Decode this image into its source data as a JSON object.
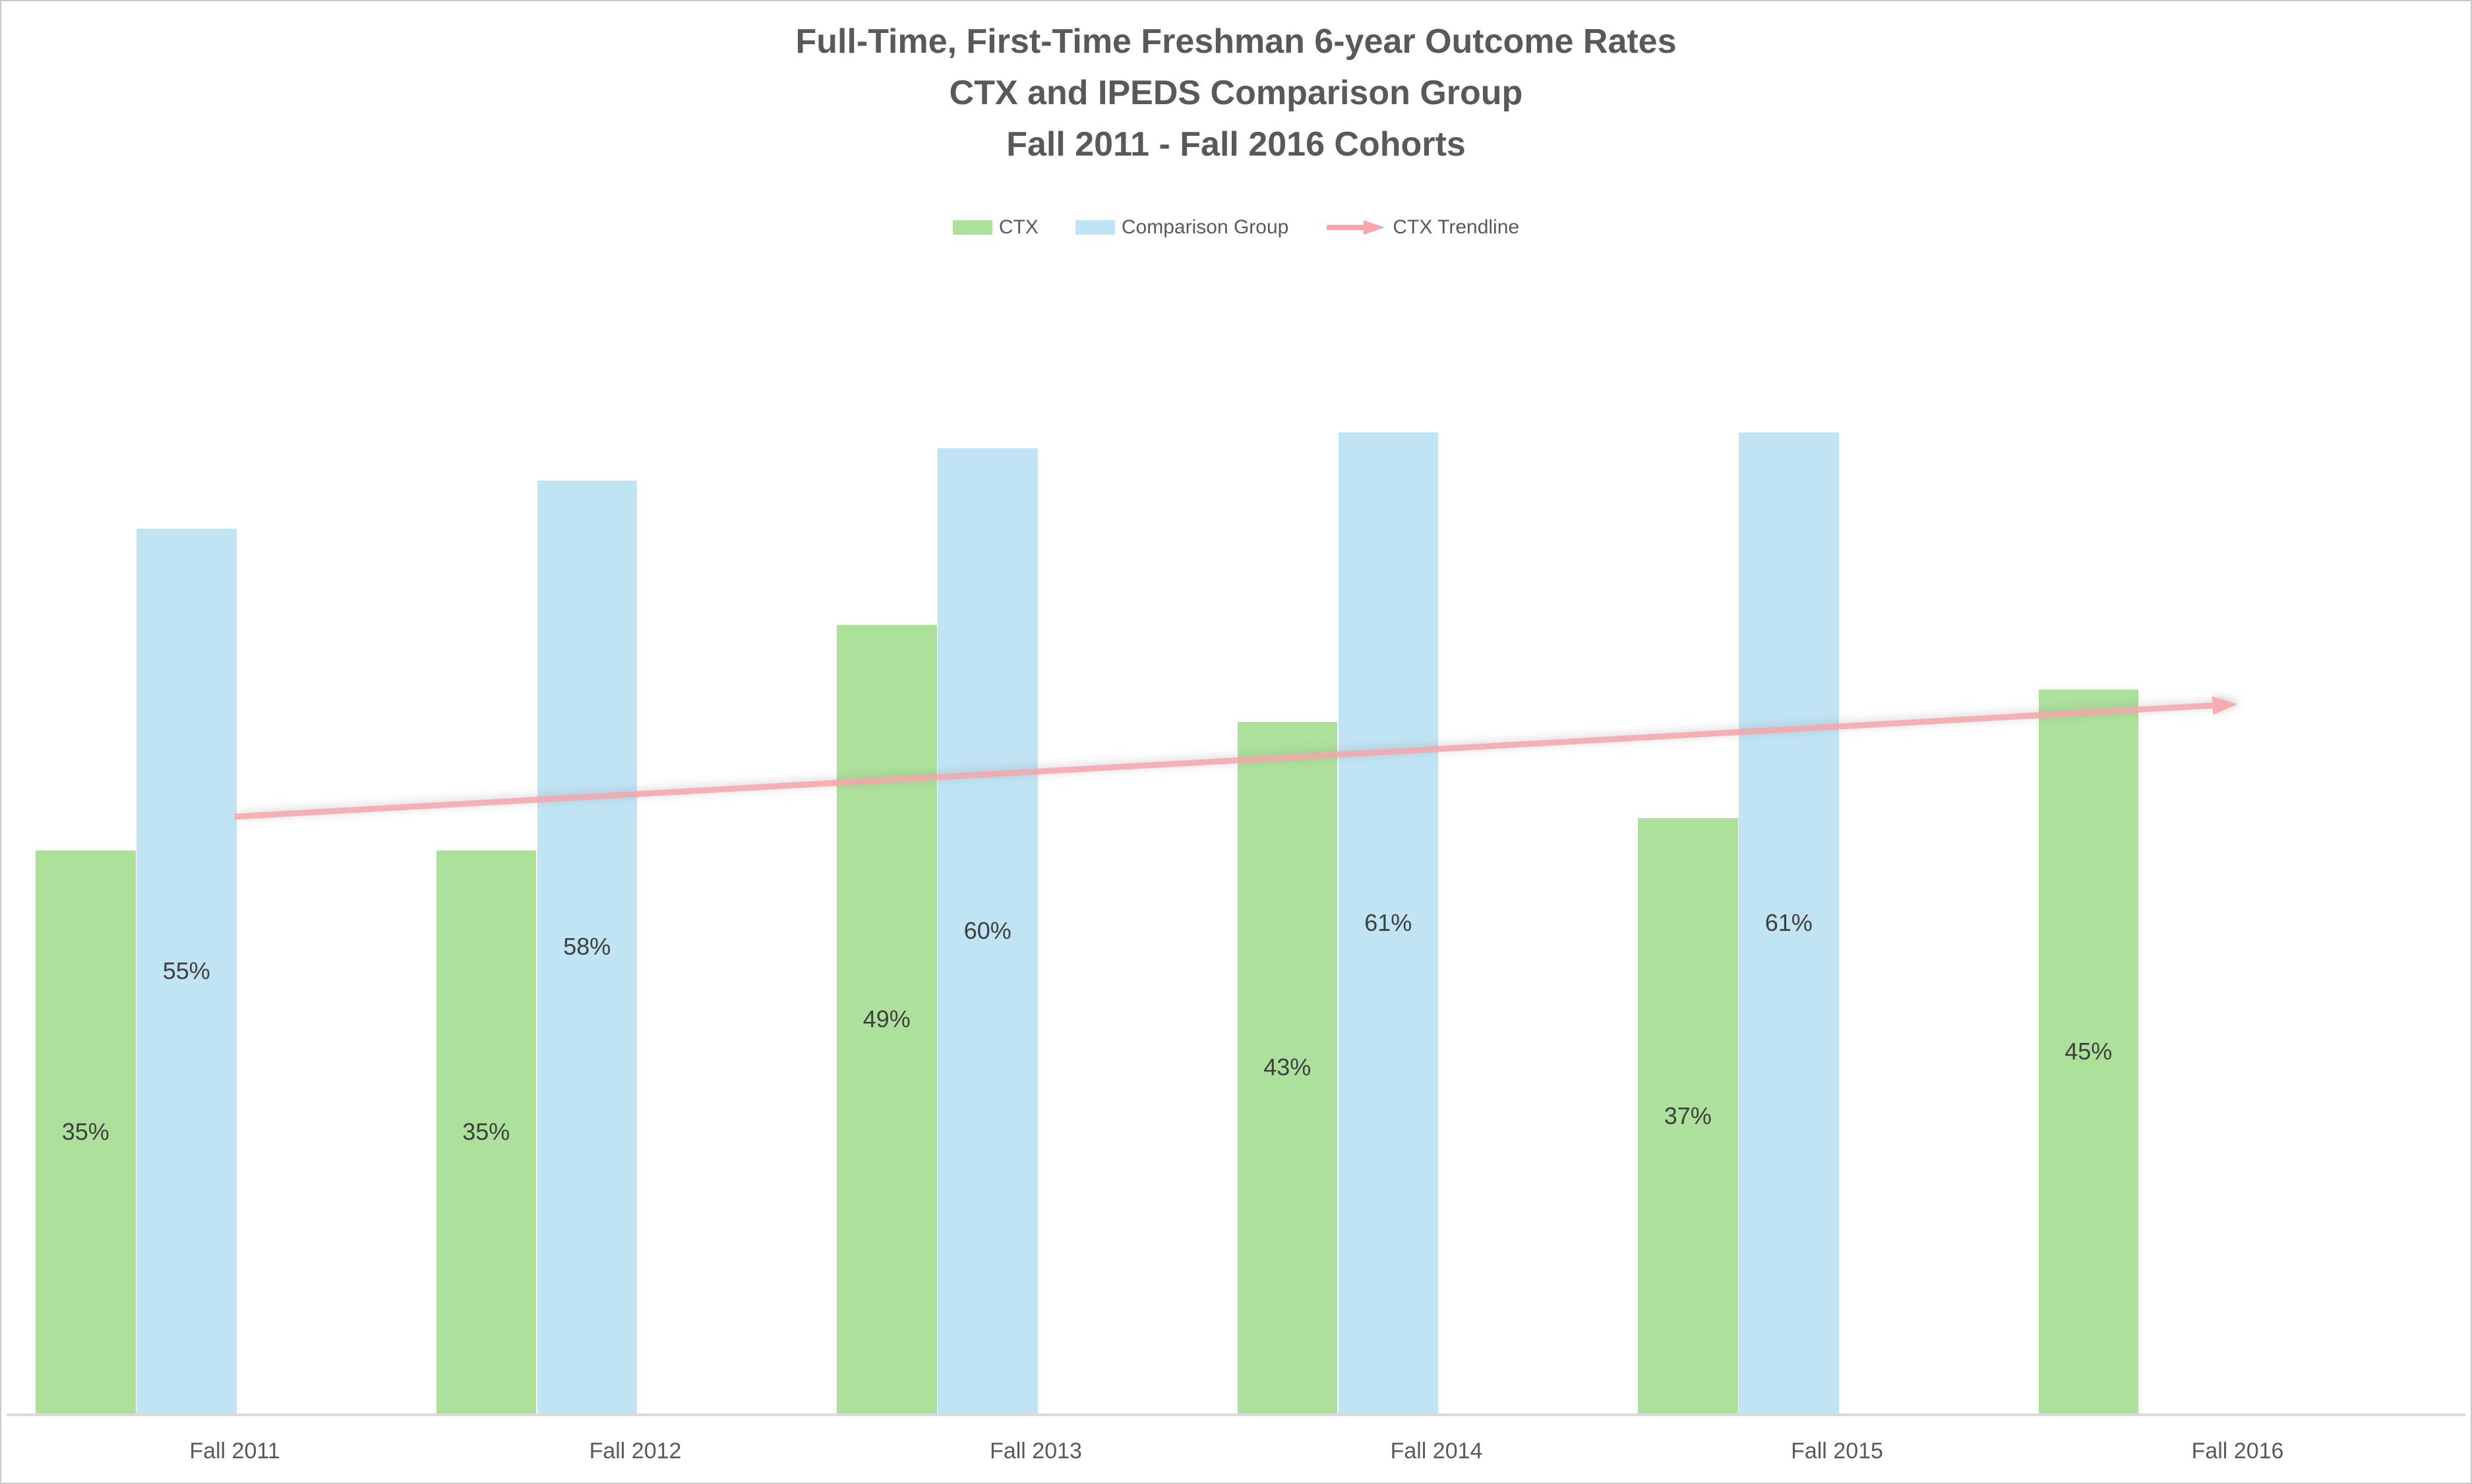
{
  "title": {
    "line1": "Full-Time, First-Time Freshman 6-year Outcome Rates",
    "line2": "CTX and IPEDS Comparison Group",
    "line3": "Fall 2011 - Fall 2016 Cohorts"
  },
  "legend": [
    {
      "label": "CTX",
      "type": "swatch",
      "color": "#ade09a"
    },
    {
      "label": "Comparison Group",
      "type": "swatch",
      "color": "#c0e4f4"
    },
    {
      "label": "CTX Trendline",
      "type": "arrow",
      "color": "#f6a6ac"
    }
  ],
  "chart_data": {
    "type": "bar",
    "title": "Full-Time, First-Time Freshman 6-year Outcome Rates — CTX and IPEDS Comparison Group — Fall 2011 - Fall 2016 Cohorts",
    "categories": [
      "Fall 2011",
      "Fall 2012",
      "Fall 2013",
      "Fall 2014",
      "Fall 2015",
      "Fall 2016"
    ],
    "series": [
      {
        "name": "CTX",
        "color": "#ade09a",
        "values": [
          35,
          35,
          49,
          43,
          37,
          45
        ],
        "labels": [
          "35%",
          "35%",
          "49%",
          "43%",
          "37%",
          "45%"
        ]
      },
      {
        "name": "Comparison Group",
        "color": "#c0e4f4",
        "values": [
          55,
          58,
          60,
          61,
          61,
          null
        ],
        "labels": [
          "55%",
          "58%",
          "60%",
          "61%",
          "61%",
          null
        ]
      }
    ],
    "trendline": {
      "name": "CTX Trendline",
      "color": "#f6a6ac",
      "start_value": 37.1,
      "end_value": 44.1
    },
    "xlabel": "",
    "ylabel": "",
    "ylim": [
      0,
      100
    ],
    "y_axis_visible": false,
    "grid": false,
    "legend_position": "top",
    "data_label_format": "percent",
    "data_label_color": "#3f3f3f",
    "axis_line_color": "#dbdbdb",
    "text_color": "#595959"
  }
}
